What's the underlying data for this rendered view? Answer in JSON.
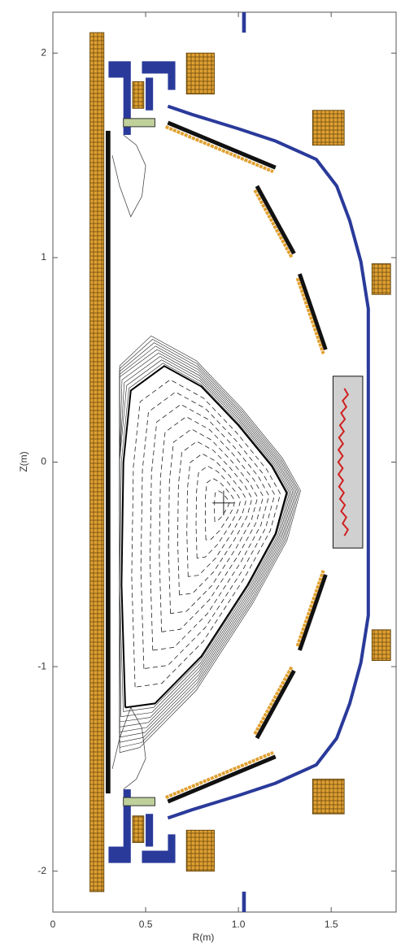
{
  "chart_data": {
    "type": "cross-section",
    "x_label": "R(m)",
    "y_label": "Z(m)",
    "xlim": [
      0,
      1.85
    ],
    "ylim": [
      -2.2,
      2.2
    ],
    "xticks": [
      0,
      0.5,
      {
        "value": 1,
        "label": "1.0"
      },
      1.5
    ],
    "yticks": [
      -2,
      -1,
      0,
      1,
      2
    ]
  }
}
